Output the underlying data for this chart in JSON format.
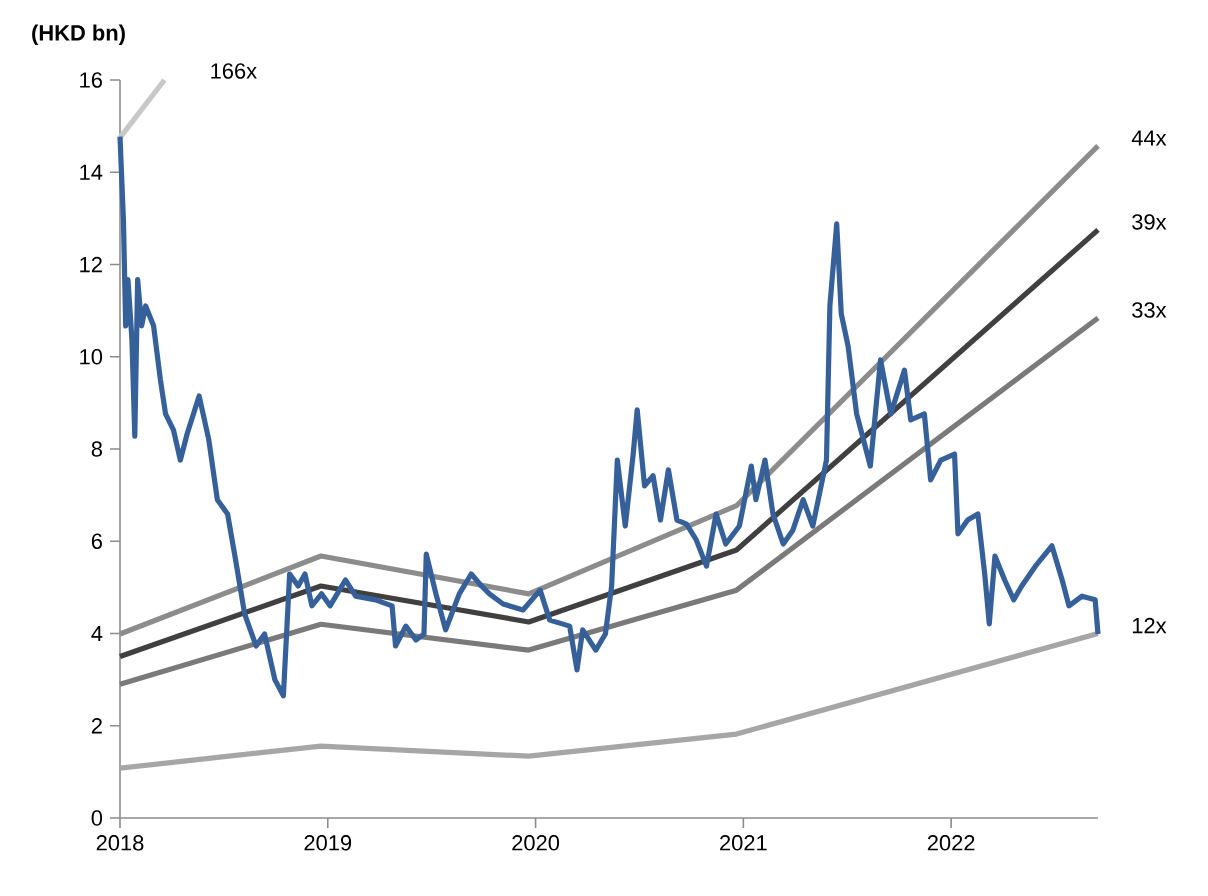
{
  "chart_data": {
    "type": "line",
    "ylabel": "(HKD bn)",
    "xlim": [
      "2018-01-01",
      "2022-09-16"
    ],
    "xticks": [
      "2018",
      "2019",
      "2020",
      "2021",
      "2022"
    ],
    "ylim": [
      0,
      16
    ],
    "yticks": [
      0,
      2,
      4,
      6,
      8,
      10,
      12,
      14,
      16
    ],
    "grid": false,
    "legend": false,
    "marker": "none",
    "line_style": "solid",
    "series": [
      {
        "name": "166x",
        "color": "#c8c8c8",
        "x": [
          "2018-01-01",
          "2018-03-20"
        ],
        "values": [
          14.75,
          16
        ]
      },
      {
        "name": "44x",
        "color": "#8c8c8c",
        "x": [
          "2018-01-01",
          "2018-12-20",
          "2019-12-20",
          "2020-12-20",
          "2022-09-16"
        ],
        "values": [
          3.99,
          5.68,
          4.86,
          6.77,
          14.57
        ]
      },
      {
        "name": "39x",
        "color": "#404040",
        "x": [
          "2018-01-01",
          "2018-12-20",
          "2019-12-20",
          "2020-12-20",
          "2022-09-16"
        ],
        "values": [
          3.5,
          5.03,
          4.25,
          5.81,
          12.75
        ]
      },
      {
        "name": "33x",
        "color": "#7a7a7a",
        "x": [
          "2018-01-01",
          "2018-12-20",
          "2019-12-20",
          "2020-12-20",
          "2022-09-16"
        ],
        "values": [
          2.9,
          4.2,
          3.64,
          4.94,
          10.84
        ]
      },
      {
        "name": "12x",
        "color": "#a6a6a6",
        "x": [
          "2018-01-01",
          "2018-12-20",
          "2019-12-20",
          "2020-12-20",
          "2022-09-16"
        ],
        "values": [
          1.08,
          1.56,
          1.34,
          1.82,
          4.0
        ]
      },
      {
        "color": "#36609a",
        "x": [
          "2018-01-01",
          "2018-01-07",
          "2018-01-11",
          "2018-01-15",
          "2018-01-22",
          "2018-01-27",
          "2018-02-01",
          "2018-02-08",
          "2018-02-15",
          "2018-03-01",
          "2018-03-13",
          "2018-03-22",
          "2018-04-05",
          "2018-04-17",
          "2018-04-29",
          "2018-05-20",
          "2018-06-06",
          "2018-06-21",
          "2018-07-09",
          "2018-07-23",
          "2018-08-08",
          "2018-08-28",
          "2018-09-12",
          "2018-09-30",
          "2018-10-15",
          "2018-10-26",
          "2018-11-10",
          "2018-11-22",
          "2018-12-04",
          "2018-12-21",
          "2019-01-05",
          "2019-02-01",
          "2019-02-19",
          "2019-03-26",
          "2019-04-24",
          "2019-04-30",
          "2019-05-18",
          "2019-06-05",
          "2019-06-19",
          "2019-06-23",
          "2019-07-10",
          "2019-07-27",
          "2019-08-20",
          "2019-09-10",
          "2019-09-28",
          "2019-10-12",
          "2019-11-05",
          "2019-12-10",
          "2020-01-09",
          "2020-01-26",
          "2020-03-01",
          "2020-03-14",
          "2020-03-24",
          "2020-04-16",
          "2020-05-03",
          "2020-05-14",
          "2020-05-24",
          "2020-06-07",
          "2020-06-21",
          "2020-06-28",
          "2020-07-11",
          "2020-07-26",
          "2020-08-08",
          "2020-08-22",
          "2020-09-06",
          "2020-09-23",
          "2020-10-10",
          "2020-10-28",
          "2020-11-14",
          "2020-12-01",
          "2020-12-25",
          "2021-01-15",
          "2021-01-23",
          "2021-02-08",
          "2021-02-22",
          "2021-03-12",
          "2021-03-29",
          "2021-04-16",
          "2021-05-03",
          "2021-05-27",
          "2021-06-02",
          "2021-06-14",
          "2021-06-22",
          "2021-07-04",
          "2021-07-19",
          "2021-07-31",
          "2021-08-12",
          "2021-08-30",
          "2021-09-17",
          "2021-10-11",
          "2021-10-22",
          "2021-11-15",
          "2021-11-26",
          "2021-12-14",
          "2022-01-07",
          "2022-01-13",
          "2022-01-30",
          "2022-02-17",
          "2022-03-01",
          "2022-03-09",
          "2022-03-19",
          "2022-04-05",
          "2022-04-21",
          "2022-05-05",
          "2022-05-29",
          "2022-06-27",
          "2022-07-15",
          "2022-07-27",
          "2022-08-19",
          "2022-09-11",
          "2022-09-16"
        ],
        "values": [
          14.77,
          12.97,
          10.67,
          11.67,
          10.36,
          8.28,
          11.67,
          10.67,
          11.1,
          10.67,
          9.5,
          8.76,
          8.41,
          7.76,
          8.33,
          9.15,
          8.2,
          6.9,
          6.59,
          5.6,
          4.42,
          3.73,
          3.99,
          3.0,
          2.65,
          5.29,
          5.03,
          5.29,
          4.6,
          4.86,
          4.6,
          5.16,
          4.81,
          4.73,
          4.6,
          3.73,
          4.16,
          3.86,
          3.99,
          5.72,
          4.86,
          4.08,
          4.86,
          5.29,
          5.03,
          4.86,
          4.64,
          4.51,
          4.94,
          4.29,
          4.16,
          3.21,
          4.08,
          3.64,
          3.99,
          5.03,
          7.76,
          6.33,
          7.89,
          8.85,
          7.2,
          7.42,
          6.46,
          7.55,
          6.46,
          6.37,
          6.03,
          5.46,
          6.59,
          5.94,
          6.33,
          7.63,
          6.9,
          7.76,
          6.59,
          5.94,
          6.24,
          6.9,
          6.33,
          7.76,
          11.1,
          12.88,
          10.93,
          10.23,
          8.76,
          8.2,
          7.63,
          9.93,
          8.76,
          9.71,
          8.63,
          8.76,
          7.33,
          7.76,
          7.89,
          6.16,
          6.46,
          6.59,
          5.29,
          4.21,
          5.68,
          5.16,
          4.73,
          5.03,
          5.46,
          5.9,
          5.16,
          4.6,
          4.81,
          4.73,
          3.99
        ]
      }
    ]
  }
}
